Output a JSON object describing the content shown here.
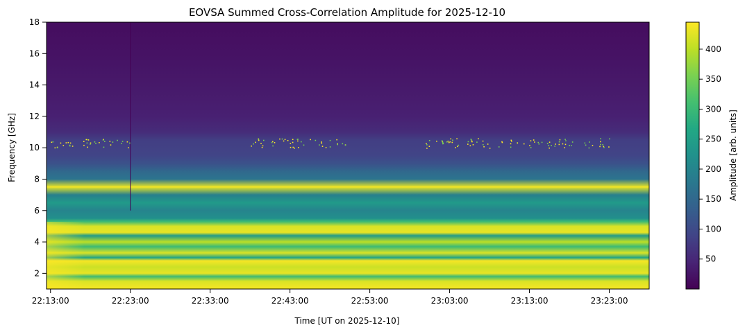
{
  "chart_data": {
    "type": "heatmap",
    "title": "EOVSA Summed Cross-Correlation Amplitude for 2025-12-10",
    "xlabel": "Time [UT on 2025-12-10]",
    "ylabel": "Frequency [GHz]",
    "x_range": [
      "22:12:30",
      "23:28:00"
    ],
    "y_range": [
      1.0,
      18.0
    ],
    "x_ticks": [
      "22:13:00",
      "22:23:00",
      "22:33:00",
      "22:43:00",
      "22:53:00",
      "23:03:00",
      "23:13:00",
      "23:23:00"
    ],
    "y_ticks": [
      2,
      4,
      6,
      8,
      10,
      12,
      14,
      16,
      18
    ],
    "colorbar": {
      "label": "Amplitude [arb. units]",
      "colormap": "viridis",
      "range": [
        0,
        445
      ],
      "ticks": [
        50,
        100,
        150,
        200,
        250,
        300,
        350,
        400
      ]
    },
    "frequency_profile": [
      {
        "freq": 1.0,
        "amp": 440
      },
      {
        "freq": 1.5,
        "amp": 420
      },
      {
        "freq": 1.8,
        "amp": 300
      },
      {
        "freq": 2.0,
        "amp": 430
      },
      {
        "freq": 2.4,
        "amp": 410
      },
      {
        "freq": 2.8,
        "amp": 440
      },
      {
        "freq": 3.0,
        "amp": 260
      },
      {
        "freq": 3.3,
        "amp": 420
      },
      {
        "freq": 3.7,
        "amp": 300
      },
      {
        "freq": 4.0,
        "amp": 400
      },
      {
        "freq": 4.4,
        "amp": 240
      },
      {
        "freq": 4.6,
        "amp": 430
      },
      {
        "freq": 5.0,
        "amp": 420
      },
      {
        "freq": 5.3,
        "amp": 300
      },
      {
        "freq": 5.5,
        "amp": 220
      },
      {
        "freq": 6.0,
        "amp": 200
      },
      {
        "freq": 6.5,
        "amp": 240
      },
      {
        "freq": 7.0,
        "amp": 190
      },
      {
        "freq": 7.5,
        "amp": 430
      },
      {
        "freq": 8.0,
        "amp": 170
      },
      {
        "freq": 8.5,
        "amp": 150
      },
      {
        "freq": 9.0,
        "amp": 110
      },
      {
        "freq": 9.5,
        "amp": 90
      },
      {
        "freq": 10.0,
        "amp": 85
      },
      {
        "freq": 10.5,
        "amp": 80
      },
      {
        "freq": 11.0,
        "amp": 55
      },
      {
        "freq": 12.0,
        "amp": 40
      },
      {
        "freq": 14.0,
        "amp": 30
      },
      {
        "freq": 16.0,
        "amp": 22
      },
      {
        "freq": 18.0,
        "amp": 15
      }
    ],
    "features": [
      {
        "type": "horizontal_line",
        "freq": 7.5,
        "amp": 440
      },
      {
        "type": "vertical_line",
        "time": "22:23:00",
        "freq_range": [
          6.0,
          18.0
        ],
        "amp": 0
      },
      {
        "type": "rfi_dots",
        "freq": 10.3,
        "time_ranges": [
          [
            "22:13:00",
            "22:23:00"
          ],
          [
            "22:38:00",
            "22:50:00"
          ],
          [
            "23:00:00",
            "23:23:00"
          ]
        ]
      }
    ],
    "grid": false,
    "legend": "none"
  }
}
